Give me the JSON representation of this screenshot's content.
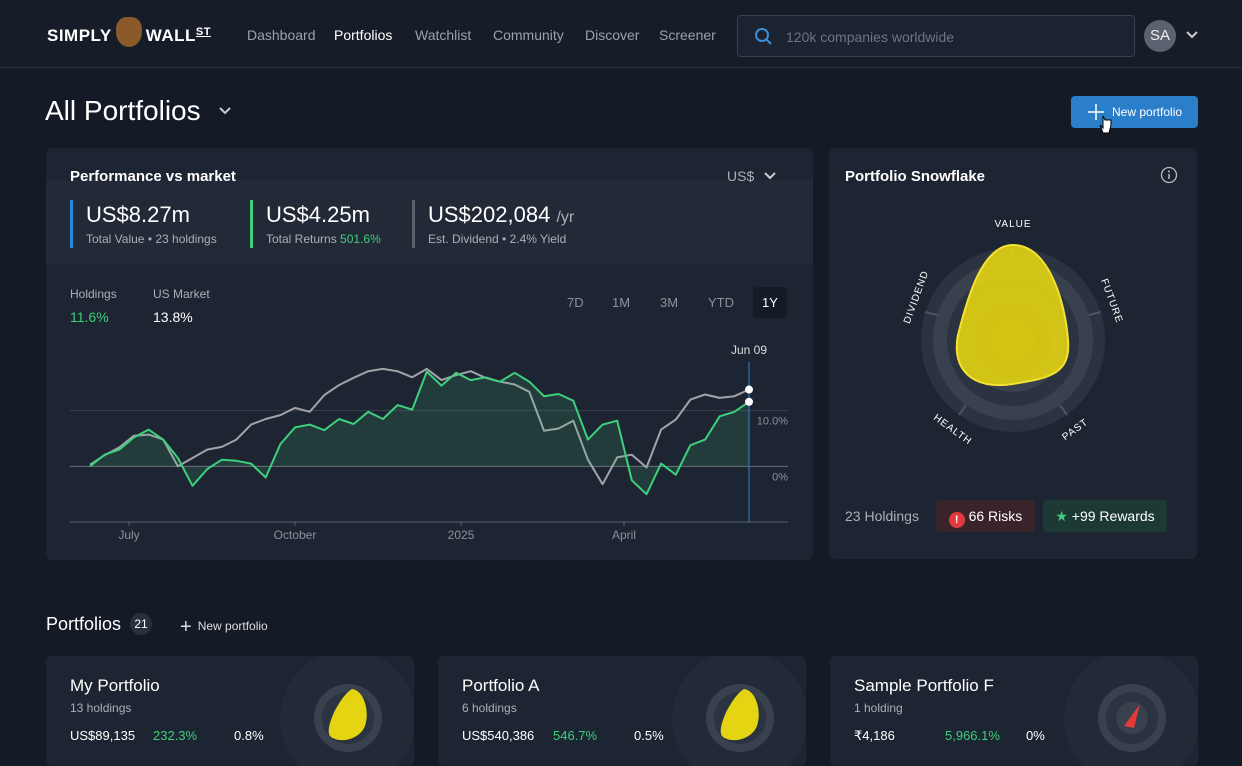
{
  "nav": {
    "logo": {
      "left": "SIMPLY",
      "right": "WALL",
      "sup": "ST"
    },
    "links": [
      "Dashboard",
      "Portfolios",
      "Watchlist",
      "Community",
      "Discover",
      "Screener"
    ],
    "search_placeholder": "120k companies worldwide",
    "avatar": "SA"
  },
  "header": {
    "title": "All Portfolios",
    "new_button": "New portfolio"
  },
  "performance": {
    "title": "Performance vs market",
    "currency": "US$",
    "stats": [
      {
        "value": "US$8.27m",
        "label": "Total Value • 23 holdings"
      },
      {
        "value": "US$4.25m",
        "label": "Total Returns",
        "highlight": "501.6%"
      },
      {
        "value": "US$202,084",
        "suffix": "/yr",
        "label": "Est. Dividend • 2.4% Yield"
      }
    ],
    "legend_values": [
      "11.6%",
      "13.8%"
    ],
    "ranges": [
      "7D",
      "1M",
      "3M",
      "YTD",
      "1Y"
    ],
    "active_range": "1Y",
    "chart": {
      "type": "line",
      "x_labels": [
        "July",
        "October",
        "2025",
        "April"
      ],
      "marker_label": "Jun 09",
      "ylim": [
        -10,
        22.7
      ],
      "yticks": [
        {
          "value": 10,
          "label": "10.0%"
        },
        {
          "value": 0,
          "label": "0%"
        }
      ],
      "series": [
        {
          "name": "Holdings",
          "color": "#3ecf7c",
          "values": [
            0,
            2.1,
            3.0,
            5.2,
            6.6,
            4.8,
            1.5,
            -3.5,
            -0.5,
            1.2,
            1.0,
            0.5,
            -2.0,
            4.0,
            7.0,
            7.5,
            6.5,
            8.5,
            7.6,
            9.8,
            8.5,
            11.0,
            10.2,
            17.0,
            14.5,
            16.8,
            15.5,
            16.0,
            15.2,
            16.8,
            15.2,
            12.6,
            13.0,
            11.8,
            4.8,
            7.5,
            8.2,
            -2.5,
            -5.0,
            0.5,
            -1.5,
            3.8,
            4.8,
            9.0,
            9.8,
            11.6
          ]
        },
        {
          "name": "US Market",
          "color": "#a3a3a8",
          "values": [
            0.3,
            2.0,
            3.4,
            5.5,
            5.7,
            4.8,
            0,
            1.5,
            3.0,
            3.5,
            4.8,
            7.5,
            8.5,
            9.2,
            10.5,
            9.8,
            12.8,
            14.6,
            15.9,
            17.1,
            17.5,
            17.1,
            16.0,
            17.5,
            15.5,
            16.4,
            17.1,
            15.9,
            15.2,
            14.7,
            13.4,
            6.4,
            6.8,
            8.2,
            1.2,
            -3.2,
            1.6,
            2.1,
            -0.2,
            6.6,
            8.4,
            12.0,
            12.9,
            12.3,
            12.6,
            13.8
          ]
        }
      ]
    }
  },
  "snowflake": {
    "title": "Portfolio Snowflake",
    "axes": [
      "VALUE",
      "FUTURE",
      "PAST",
      "HEALTH",
      "DIVIDEND"
    ],
    "holdings": "23 Holdings",
    "risks": "66 Risks",
    "rewards": "+99 Rewards"
  },
  "portfolios": {
    "title": "Portfolios",
    "count": "21",
    "new_button": "New portfolio",
    "cards": [
      {
        "name": "My Portfolio",
        "holdings": "13 holdings",
        "value": "US$89,135",
        "returns": "232.3%",
        "yield": "0.8%"
      },
      {
        "name": "Portfolio A",
        "holdings": "6 holdings",
        "value": "US$540,386",
        "returns": "546.7%",
        "yield": "0.5%"
      },
      {
        "name": "Sample Portfolio F",
        "holdings": "1 holding",
        "value": "₹4,186",
        "returns": "5,966.1%",
        "yield": "0%"
      }
    ]
  }
}
